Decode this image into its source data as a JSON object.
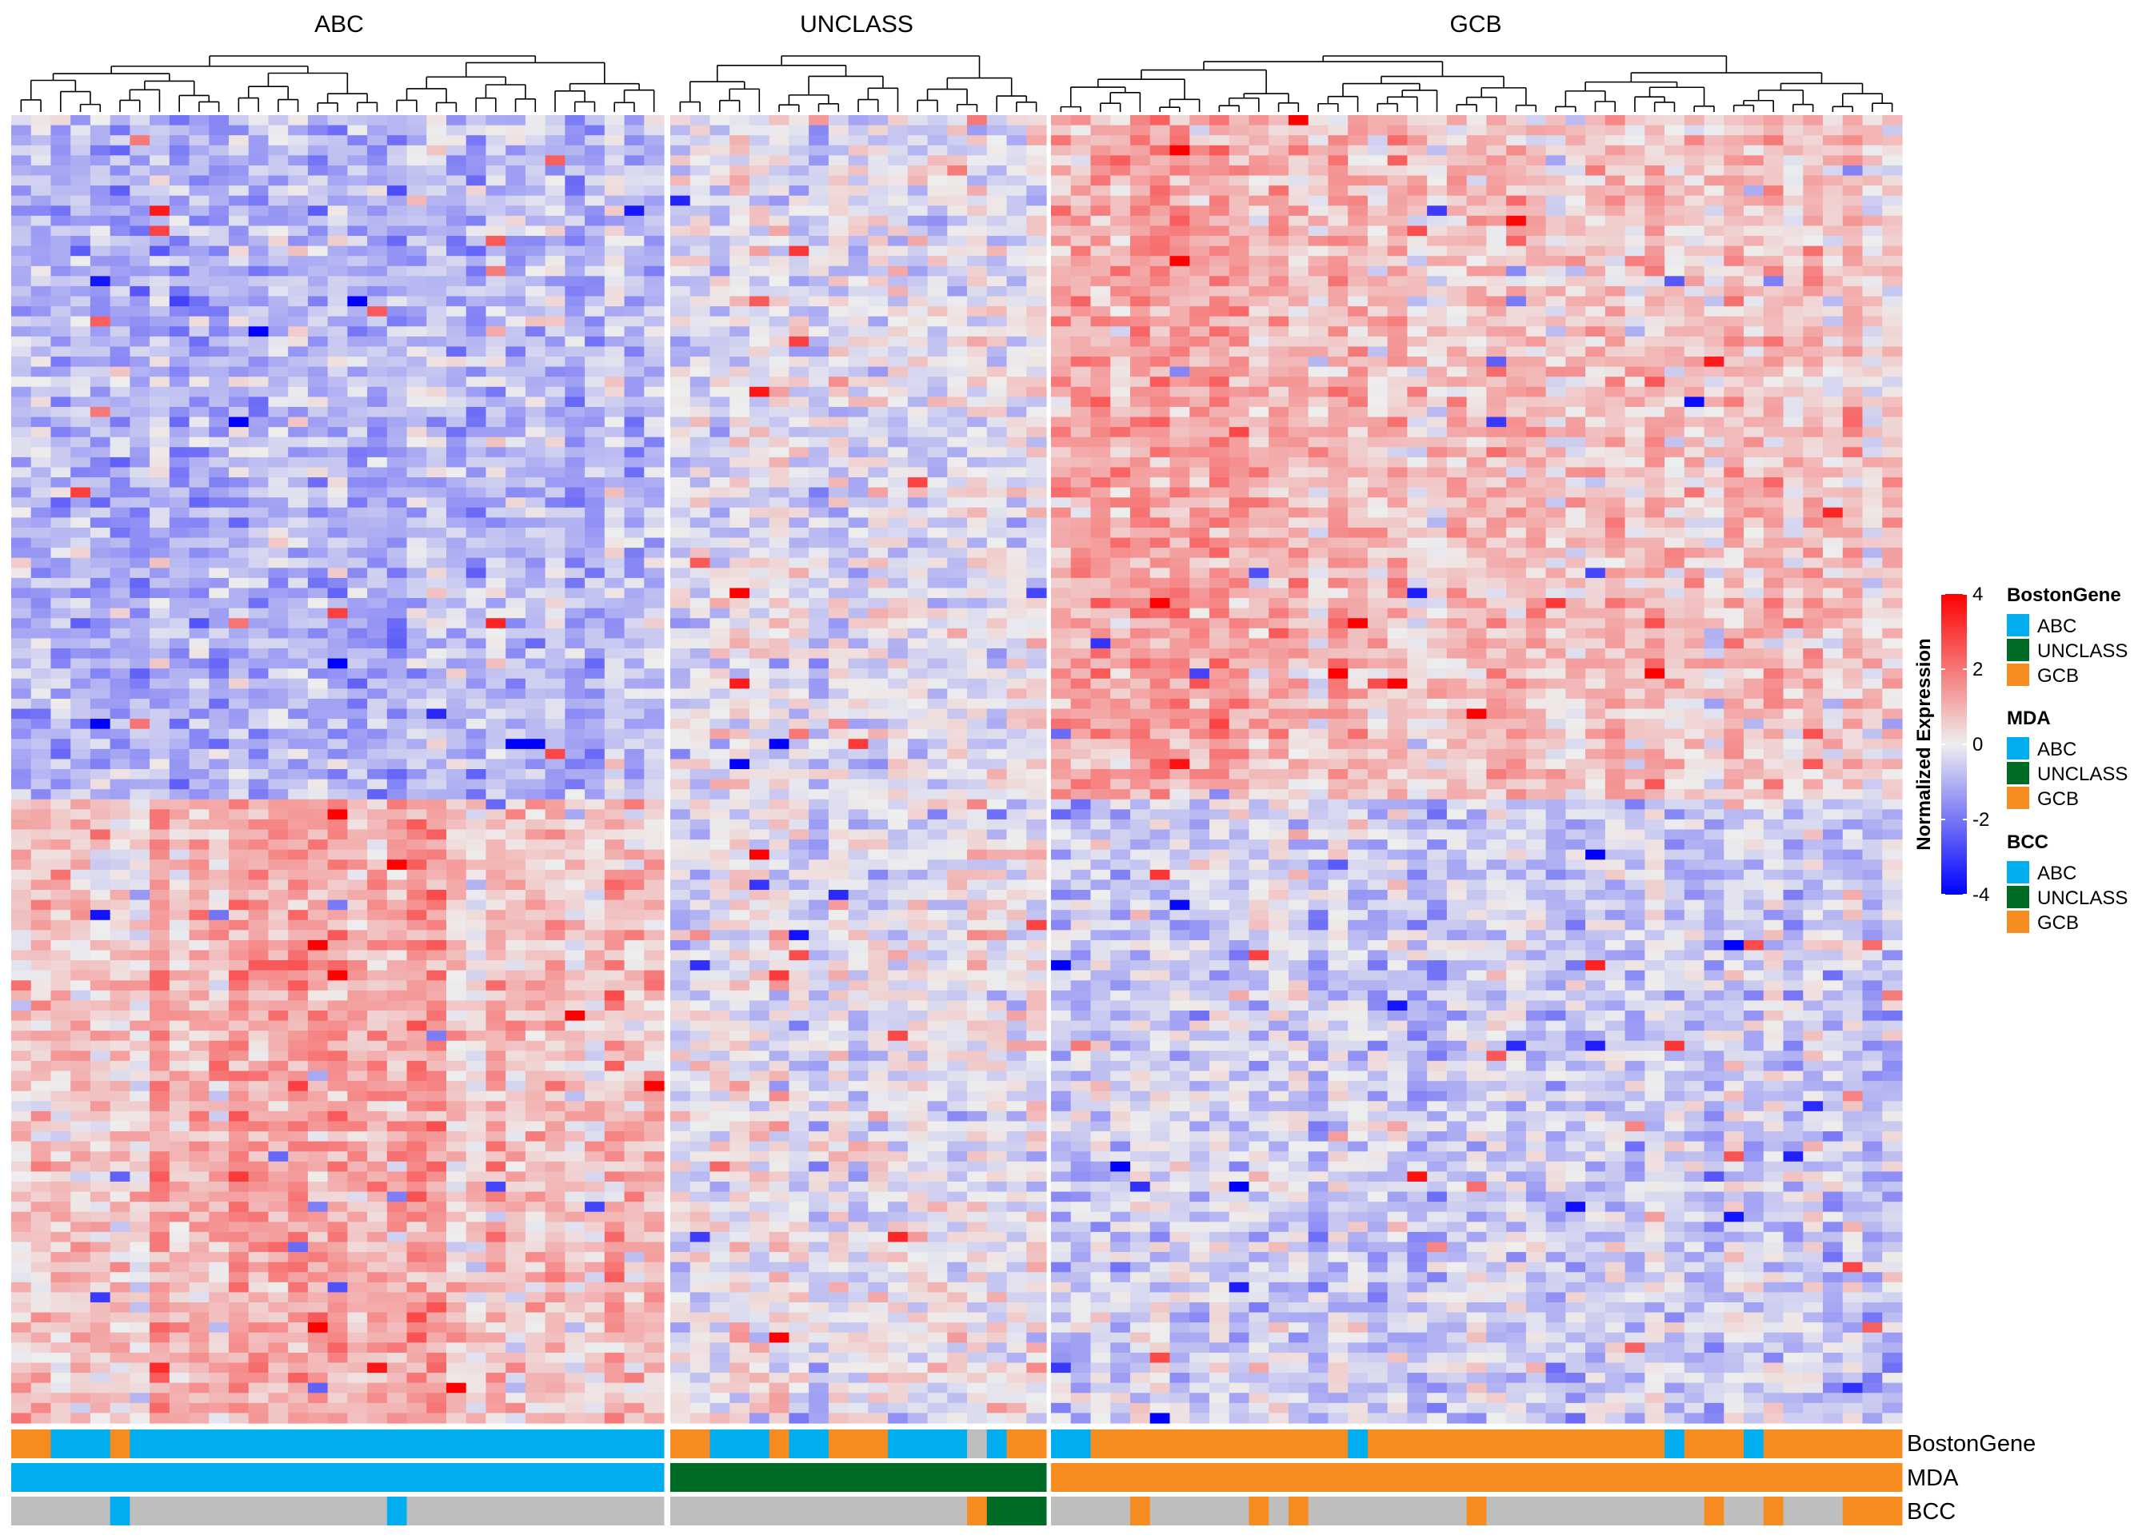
{
  "chart_data": {
    "type": "heatmap",
    "title": "",
    "groups": [
      {
        "name": "ABC",
        "n_samples": 33
      },
      {
        "name": "UNCLASS",
        "n_samples": 19
      },
      {
        "name": "GCB",
        "n_samples": 43
      }
    ],
    "n_genes": 130,
    "group_patterns": {
      "ABC": {
        "top_half": "mostly low (blue)",
        "bottom_half": "mostly high (red), strongest in central columns"
      },
      "UNCLASS": {
        "overall": "mixed low/high with scattered saturated values"
      },
      "GCB": {
        "top_half": "mostly high (red), strongest in left columns",
        "bottom_half": "mostly low (blue)"
      }
    },
    "color_scale": {
      "title": "Normalized Expression",
      "min": -4,
      "max": 4,
      "ticks": [
        4,
        2,
        0,
        -2,
        -4
      ],
      "colors": {
        "low": "#0000ff",
        "mid": "#eeeeee",
        "high": "#ff0000"
      }
    },
    "annotation_tracks": [
      {
        "name": "BostonGene",
        "segments": {
          "ABC": [
            [
              "GCB",
              2
            ],
            [
              "ABC",
              3
            ],
            [
              "GCB",
              1
            ],
            [
              "ABC",
              27
            ]
          ],
          "UNCLASS": [
            [
              "GCB",
              2
            ],
            [
              "ABC",
              3
            ],
            [
              "GCB",
              1
            ],
            [
              "ABC",
              2
            ],
            [
              "GCB",
              3
            ],
            [
              "ABC",
              4
            ],
            [
              "NA",
              1
            ],
            [
              "ABC",
              1
            ],
            [
              "GCB",
              2
            ]
          ],
          "GCB": [
            [
              "ABC",
              2
            ],
            [
              "GCB",
              13
            ],
            [
              "ABC",
              1
            ],
            [
              "GCB",
              15
            ],
            [
              "ABC",
              1
            ],
            [
              "GCB",
              3
            ],
            [
              "ABC",
              1
            ],
            [
              "GCB",
              7
            ]
          ]
        }
      },
      {
        "name": "MDA",
        "segments": {
          "ABC": [
            [
              "ABC",
              33
            ]
          ],
          "UNCLASS": [
            [
              "UNCLASS",
              19
            ]
          ],
          "GCB": [
            [
              "GCB",
              43
            ]
          ]
        }
      },
      {
        "name": "BCC",
        "segments": {
          "ABC": [
            [
              "NA",
              5
            ],
            [
              "ABC",
              1
            ],
            [
              "NA",
              13
            ],
            [
              "ABC",
              1
            ],
            [
              "NA",
              13
            ]
          ],
          "UNCLASS": [
            [
              "NA",
              15
            ],
            [
              "GCB",
              1
            ],
            [
              "UNCLASS",
              3
            ]
          ],
          "GCB": [
            [
              "NA",
              4
            ],
            [
              "GCB",
              1
            ],
            [
              "NA",
              5
            ],
            [
              "GCB",
              1
            ],
            [
              "NA",
              1
            ],
            [
              "GCB",
              1
            ],
            [
              "NA",
              8
            ],
            [
              "GCB",
              1
            ],
            [
              "NA",
              11
            ],
            [
              "GCB",
              1
            ],
            [
              "NA",
              2
            ],
            [
              "GCB",
              1
            ],
            [
              "NA",
              3
            ],
            [
              "GCB",
              3
            ]
          ]
        }
      }
    ],
    "legends": [
      {
        "title": "BostonGene",
        "items": [
          "ABC",
          "UNCLASS",
          "GCB"
        ]
      },
      {
        "title": "MDA",
        "items": [
          "ABC",
          "UNCLASS",
          "GCB"
        ]
      },
      {
        "title": "BCC",
        "items": [
          "ABC",
          "UNCLASS",
          "GCB"
        ]
      }
    ],
    "category_colors": {
      "ABC": "#00aeef",
      "UNCLASS": "#006b24",
      "GCB": "#f68b1f",
      "NA": "#bebebe"
    },
    "dendrogram": true
  }
}
